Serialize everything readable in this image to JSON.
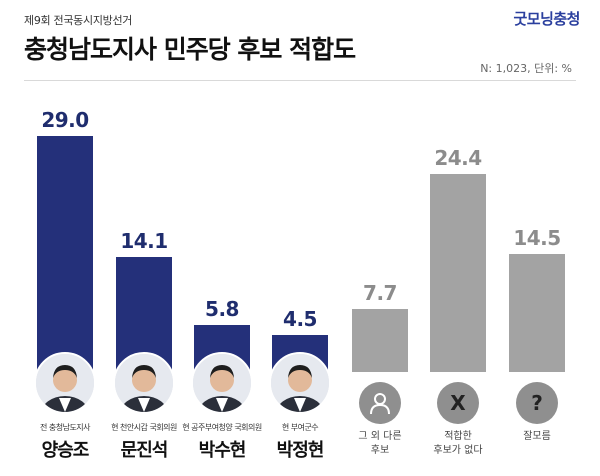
{
  "header": {
    "subtitle": "제9회 전국동시지방선거",
    "brand": "굿모닝충청",
    "title": "충청남도지사 민주당 후보 적합도",
    "note": "N: 1,023, 단위: %"
  },
  "colors": {
    "candidate_bar": "#24307a",
    "other_bar": "#a3a3a3",
    "value_text": "#1f2d6e",
    "other_value_text": "#8c8c8c"
  },
  "chart_data": {
    "type": "bar",
    "title": "충청남도지사 민주당 후보 적합도",
    "categories": [
      "양승조",
      "문진석",
      "박수현",
      "박정현",
      "그 외 다른 후보",
      "적합한 후보가 없다",
      "잘모름"
    ],
    "values": [
      29.0,
      14.1,
      5.8,
      4.5,
      7.7,
      24.4,
      14.5
    ],
    "value_labels": [
      "29.0",
      "14.1",
      "5.8",
      "4.5",
      "7.7",
      "24.4",
      "14.5"
    ],
    "ylim": [
      0,
      30
    ],
    "grid": false,
    "unit": "%"
  },
  "candidates": [
    {
      "role": "전 충청남도지사",
      "name": "양승조"
    },
    {
      "role": "현 천안시갑 국회의원",
      "name": "문진석"
    },
    {
      "role": "현 공주부여청양 국회의원",
      "name": "박수현"
    },
    {
      "role": "현 부여군수",
      "name": "박정현"
    }
  ],
  "others": [
    {
      "icon": "person-icon",
      "label_line1": "그 외 다른",
      "label_line2": "후보"
    },
    {
      "icon": "x-icon",
      "symbol": "X",
      "label_line1": "적합한",
      "label_line2": "후보가 없다"
    },
    {
      "icon": "question-icon",
      "symbol": "?",
      "label_line1": "잘모름",
      "label_line2": ""
    }
  ]
}
